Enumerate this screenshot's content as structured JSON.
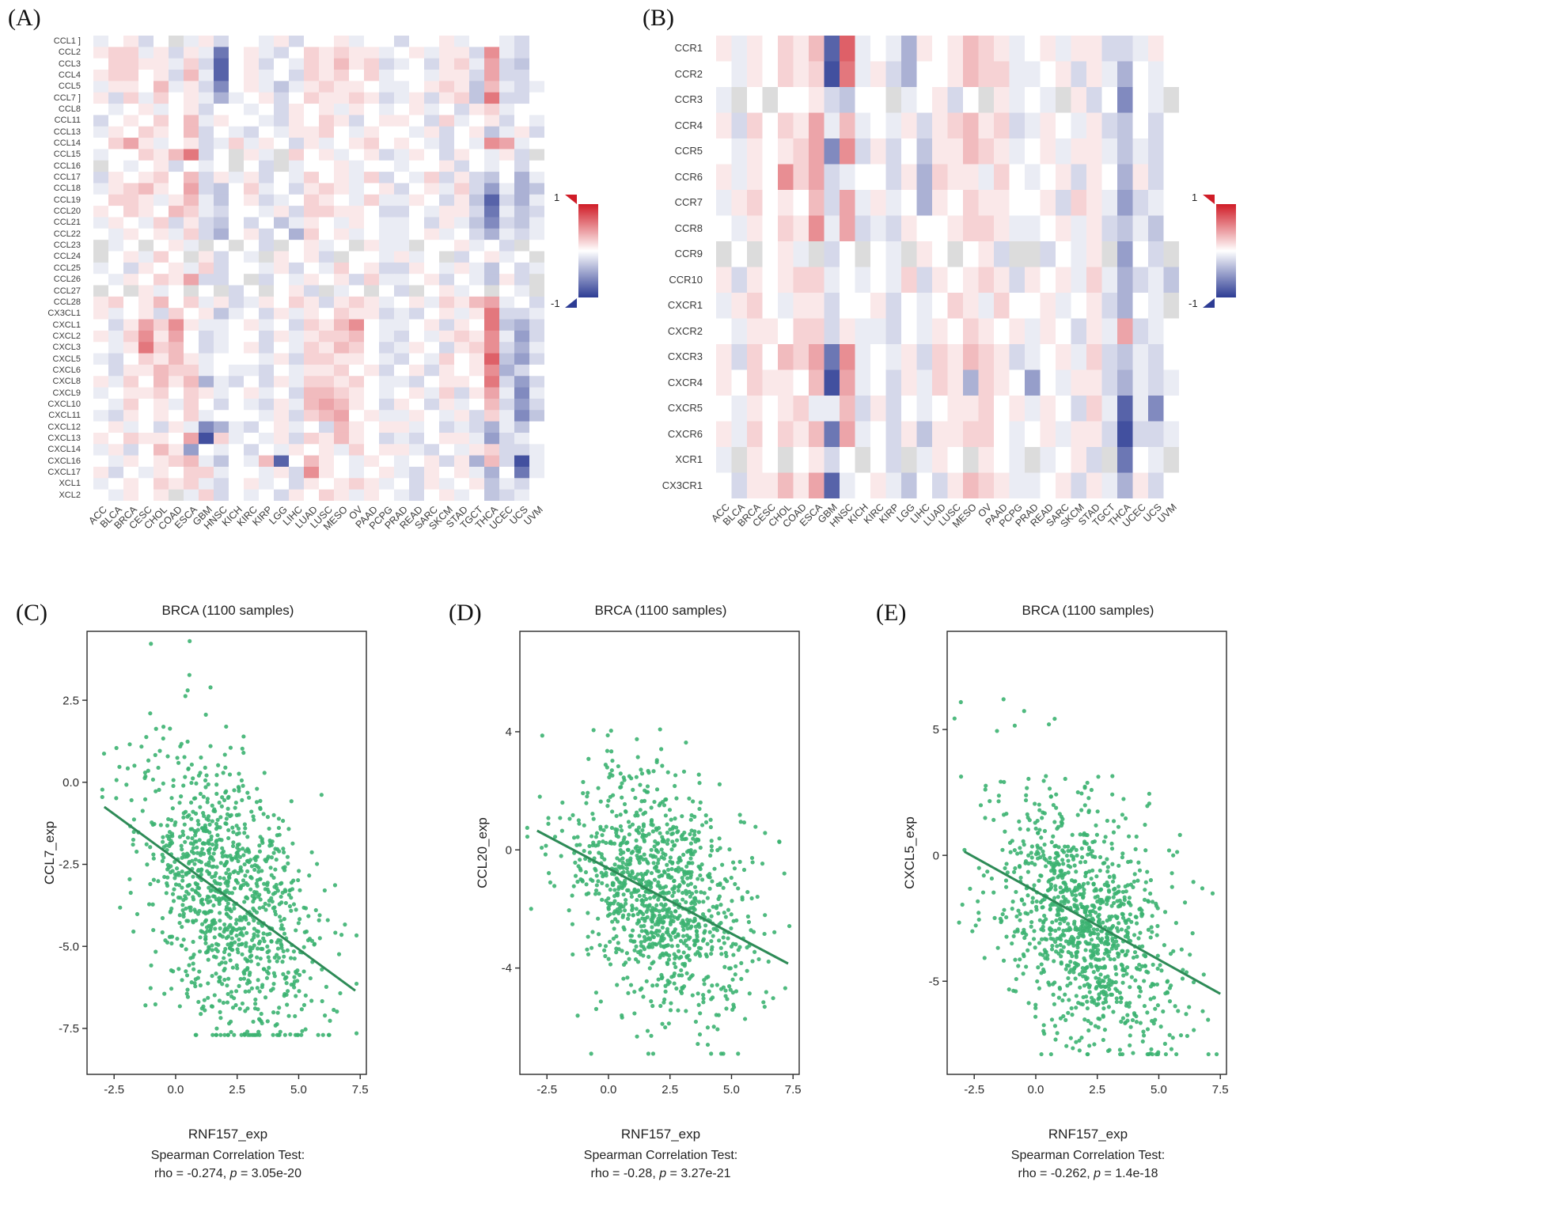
{
  "colorbar_note": "diverging correlation scale from -1 (blue) to 1 (red), gray = missing",
  "chart_data": [
    {
      "type": "heatmap",
      "panel_label": "(A)",
      "colorbar": {
        "max": "1",
        "min": "-1"
      },
      "value_scale": {
        "vmin": -1,
        "vmax": 1
      },
      "pos_color": "#d01c27",
      "neg_color": "#2d3c94",
      "missing_color": "#dcdcdc",
      "value_encoding": "each row is a 30-char string, one char per column; value = (parseInt(char,36)-10)/10 in [-1,1]; 'z' = missing (gray)",
      "rows": [
        "CCL1 ]",
        "CCL2",
        "CCL3",
        "CCL4",
        "CCL5",
        "CCL7 ]",
        "CCL8",
        "CCL11",
        "CCL13",
        "CCL14",
        "CCL15",
        "CCL16",
        "CCL17",
        "CCL18",
        "CCL19",
        "CCL20",
        "CCL21",
        "CCL22",
        "CCL23",
        "CCL24",
        "CCL25",
        "CCL26",
        "CCL27",
        "CCL28",
        "CX3CL1",
        "CXCL1",
        "CXCL2",
        "CXCL3",
        "CXCL5",
        "CXCL6",
        "CXCL8",
        "CXCL9",
        "CXCL10",
        "CXCL11",
        "CXCL12",
        "CXCL13",
        "CXCL14",
        "CXCL16",
        "CXCL17",
        "XCL1",
        "XCL2"
      ],
      "cols": [
        "ACC",
        "BLCA",
        "BRCA",
        "CESC",
        "CHOL",
        "COAD",
        "ESCA",
        "GBM",
        "HNSC",
        "KICH",
        "KIRC",
        "KIRP",
        "LGG",
        "LIHC",
        "LUAD",
        "LUSC",
        "MESO",
        "OV",
        "PAAD",
        "PCPG",
        "PRAD",
        "READ",
        "SARC",
        "SKCM",
        "STAD",
        "TGCT",
        "THCA",
        "UCEC",
        "UCS",
        "UVM"
      ],
      "values": [
        "9ab8az9b8aa9b8aab9aa8aab9aa98a",
        "bcc9b8b93ab98acbcbb9ab9bb8f98a",
        "accbb9c82ab8a9cbdbc89a8bc9e87a",
        "bccab8d92ab9a8cbcac9aa9bb8e88a",
        "9bbad9b84ab979bcbba99abcb7d989",
        "b8c9cab969ab8acbbcb89b8bc7g88a",
        "a9ab9ab8aa9a8bab9ba9ab9a8bc9aa",
        "8abacad9baa98bacb8abba8c9ab8a9",
        "9bacbad8a98a9bbca9baa9b8ab79b8",
        "aceb9ab89c9ba8b9abcaba98a9fe9a",
        "9aacbdg8azb9zcab9ab89ba8ba9b8z",
        "za9ab8a9aza8z9aab9aa9aab8a9a8a",
        "8babcad8b9b8a9cab9c8a9c8b87a69",
        "9bcdbae87ac9a8bcb9ab8ab9c85967",
        "accb9bd97ab89acba9c99ba8b72869",
        "bacbadc98aa9b8ccbba88a9bb83978",
        "9ba9c8b87a8a79ba9ba99a8b974879",
        "a9bab9c86ab8a6cab9a99ab9a86989",
        "z9azab9zaza8zab9azb99zaab9a8za",
        "zab9cazb8a9zbab8zaa9b9az8ab9az",
        "9a8bab9c8aa9b8a9cab88ba9b97a89",
        "a9bacbe88az8a9bab8c99ab8a97b8z",
        "zazb9azaz8azab8z9aza8zab9aza9z",
        "bcabdac9b89bacb8bcb9ab9cbde9a8",
        "b9ab8cab79a8b9bacbb898ab9bg889",
        "a8becfb99ab9a8cbdfa99ab8bag768",
        "b9cfbea89aa8b9bccda98a9bcbf958",
        "a9bgcda89ab8a9cbdca89ba8bcf869",
        "98acbdb9aaa9b8ccbba98a9cabh758",
        "a8bbdcc9a998a9bbcab8ab8babf68a",
        "b9cadbd698a8b9ccbca998abbag858",
        "9abbcacb9ab9a8ddcba9ab9c8be949",
        "a9cab9ca8a98b9dedba8ba8b9ad858",
        "98babac9aaa9b8cdeab99ba9b8c947",
        "ab9a8b94698ab9a8dbabb9a898697a",
        "bacbbae1c9a9b8cbdba898abb9589a",
        "9b8adb5a9a8a9bab9cabb98a9bc889",
        "a9babcd97a9d2adba9ba9ab8b6d819",
        "b8a9bacc9aa9b8fba9ab98bab96a39",
        "9abacbc98ab9a8babcb9a8b9ab798a",
        "a9babz9c8a9a8bacb9ba98ab9a789a"
      ]
    },
    {
      "type": "heatmap",
      "panel_label": "(B)",
      "colorbar": {
        "max": "1",
        "min": "-1"
      },
      "value_scale": {
        "vmin": -1,
        "vmax": 1
      },
      "pos_color": "#d01c27",
      "neg_color": "#2d3c94",
      "missing_color": "#dcdcdc",
      "value_encoding": "each row is a 30-char string, one char per column; value = (parseInt(char,36)-10)/10 in [-1,1]; 'z' = missing (gray)",
      "rows": [
        "CCR1",
        "CCR2",
        "CCR3",
        "CCR4",
        "CCR5",
        "CCR6",
        "CCR7",
        "CCR8",
        "CCR9",
        "CCR10",
        "CXCR1",
        "CXCR2",
        "CXCR3",
        "CXCR4",
        "CXCR5",
        "CXCR6",
        "XCR1",
        "CX3CR1"
      ],
      "cols": [
        "ACC",
        "BLCA",
        "BRCA",
        "CESC",
        "CHOL",
        "COAD",
        "ESCA",
        "GBM",
        "HNSC",
        "KICH",
        "KIRC",
        "KIRP",
        "LGG",
        "LIHC",
        "LUAD",
        "LUSC",
        "MESO",
        "OV",
        "PAAD",
        "PCPG",
        "PRAD",
        "READ",
        "SARC",
        "SKCM",
        "STAD",
        "TGCT",
        "THCA",
        "UCEC",
        "UCS",
        "UVM"
      ],
      "values": [
        "b9bacbd2h9a96babdcb9ab9bb889ba",
        "a9bacbc1g9b86aabdcc99ab8b96a9a",
        "9zazaab87aaz9ab8azb9a9zb8a4a9z",
        "b8cacbe9d9a9b8bcdbc89ba9b87a8a",
        "a9babce4f8b8a7bbdcb9ab9bb9798a",
        "b9bafce89aa8b6cbb9ca9ab8ba6b8a",
        "9bcabad8e9b9a6bacbbaab8cb9589a",
        "a9bacbf9e898baabccb99ab9b8797a",
        "zazab9z8aza9zbazab8zz8a9bz5a8z",
        "b8babcc9a9a9c8babcb8bab9c96897",
        "9bca9bb8aab8a9acb9caab9ab86a9z",
        "a9bbacc8b998a9bacbab9ba8b9e89a",
        "b8cadce3f9a9b8cbdcb89ab9c8798a",
        "bacbbad1e9a8b9cb6cba5a9bb86989",
        "a9babc99d8b8a9abbcab9ba8c9294a",
        "b9cacbd3e9a8b7bbcca9ab9bb81889",
        "9zbazab8aza8z9bazba9z9ab8z3a9z",
        "a8bbdbe29ab97a8bdcb99ab8b96b8a"
      ]
    },
    {
      "type": "scatter",
      "panel_label": "(C)",
      "title": "BRCA (1100 samples)",
      "xlabel": "RNF157_exp",
      "ylabel": "CCL7_exp",
      "stats_title": "Spearman Correlation Test:",
      "rho": -0.274,
      "p_value": "3.05e-20",
      "rho_text": "rho = -0.274, ",
      "p_italic": "p",
      "p_text": " = 3.05e-20",
      "n_points": 1100,
      "seed": 20241,
      "xlim": [
        -3.6,
        7.75
      ],
      "ylim": [
        -8.9,
        4.6
      ],
      "x_ticks": {
        "values": [
          -2.5,
          0,
          2.5,
          5,
          7.5
        ],
        "labels": [
          "-2.5",
          "0.0",
          "2.5",
          "5.0",
          "7.5"
        ]
      },
      "y_ticks": {
        "values": [
          2.5,
          0,
          -2.5,
          -5,
          -7.5
        ],
        "labels": [
          "2.5",
          "0.0",
          "-2.5",
          "-5.0",
          "-7.5"
        ]
      },
      "x_mean": 2.05,
      "x_sd": 1.8,
      "x_clip": [
        -3.3,
        7.35
      ],
      "trend_line": {
        "x1": -2.9,
        "y1": -0.75,
        "x2": 7.3,
        "y2": -6.35
      },
      "resid_sd": 2.0,
      "y_clip": [
        -7.7,
        4.4
      ],
      "point_color": "#3cb371",
      "line_color": "#2e8b57"
    },
    {
      "type": "scatter",
      "panel_label": "(D)",
      "title": "BRCA (1100 samples)",
      "xlabel": "RNF157_exp",
      "ylabel": "CCL20_exp",
      "stats_title": "Spearman Correlation Test:",
      "rho": -0.28,
      "p_value": "3.27e-21",
      "rho_text": "rho = -0.28, ",
      "p_italic": "p",
      "p_text": " = 3.27e-21",
      "n_points": 1100,
      "seed": 777,
      "xlim": [
        -3.6,
        7.75
      ],
      "ylim": [
        -7.6,
        7.4
      ],
      "x_ticks": {
        "values": [
          -2.5,
          0,
          2.5,
          5,
          7.5
        ],
        "labels": [
          "-2.5",
          "0.0",
          "2.5",
          "5.0",
          "7.5"
        ]
      },
      "y_ticks": {
        "values": [
          4,
          0,
          -4
        ],
        "labels": [
          "4",
          "0",
          "-4"
        ]
      },
      "x_mean": 2.05,
      "x_sd": 1.8,
      "x_clip": [
        -3.3,
        7.35
      ],
      "trend_line": {
        "x1": -2.9,
        "y1": 0.65,
        "x2": 7.3,
        "y2": -3.85
      },
      "resid_sd": 1.95,
      "y_clip": [
        -6.9,
        7.0
      ],
      "point_color": "#3cb371",
      "line_color": "#2e8b57"
    },
    {
      "type": "scatter",
      "panel_label": "(E)",
      "title": "BRCA (1100 samples)",
      "xlabel": "RNF157_exp",
      "ylabel": "CXCL5_exp",
      "stats_title": "Spearman Correlation Test:",
      "rho": -0.262,
      "p_value": "1.4e-18",
      "rho_text": "rho = -0.262, ",
      "p_italic": "p",
      "p_text": " = 1.4e-18",
      "n_points": 1100,
      "seed": 1337,
      "xlim": [
        -3.6,
        7.75
      ],
      "ylim": [
        -8.7,
        8.9
      ],
      "x_ticks": {
        "values": [
          -2.5,
          0,
          2.5,
          5,
          7.5
        ],
        "labels": [
          "-2.5",
          "0.0",
          "2.5",
          "5.0",
          "7.5"
        ]
      },
      "y_ticks": {
        "values": [
          5,
          0,
          -5
        ],
        "labels": [
          "5",
          "0",
          "-5"
        ]
      },
      "x_mean": 2.05,
      "x_sd": 1.8,
      "x_clip": [
        -3.3,
        7.35
      ],
      "trend_line": {
        "x1": -2.9,
        "y1": 0.15,
        "x2": 7.5,
        "y2": -5.5
      },
      "resid_sd": 2.3,
      "y_clip": [
        -7.9,
        8.3
      ],
      "point_color": "#3cb371",
      "line_color": "#2e8b57"
    }
  ]
}
